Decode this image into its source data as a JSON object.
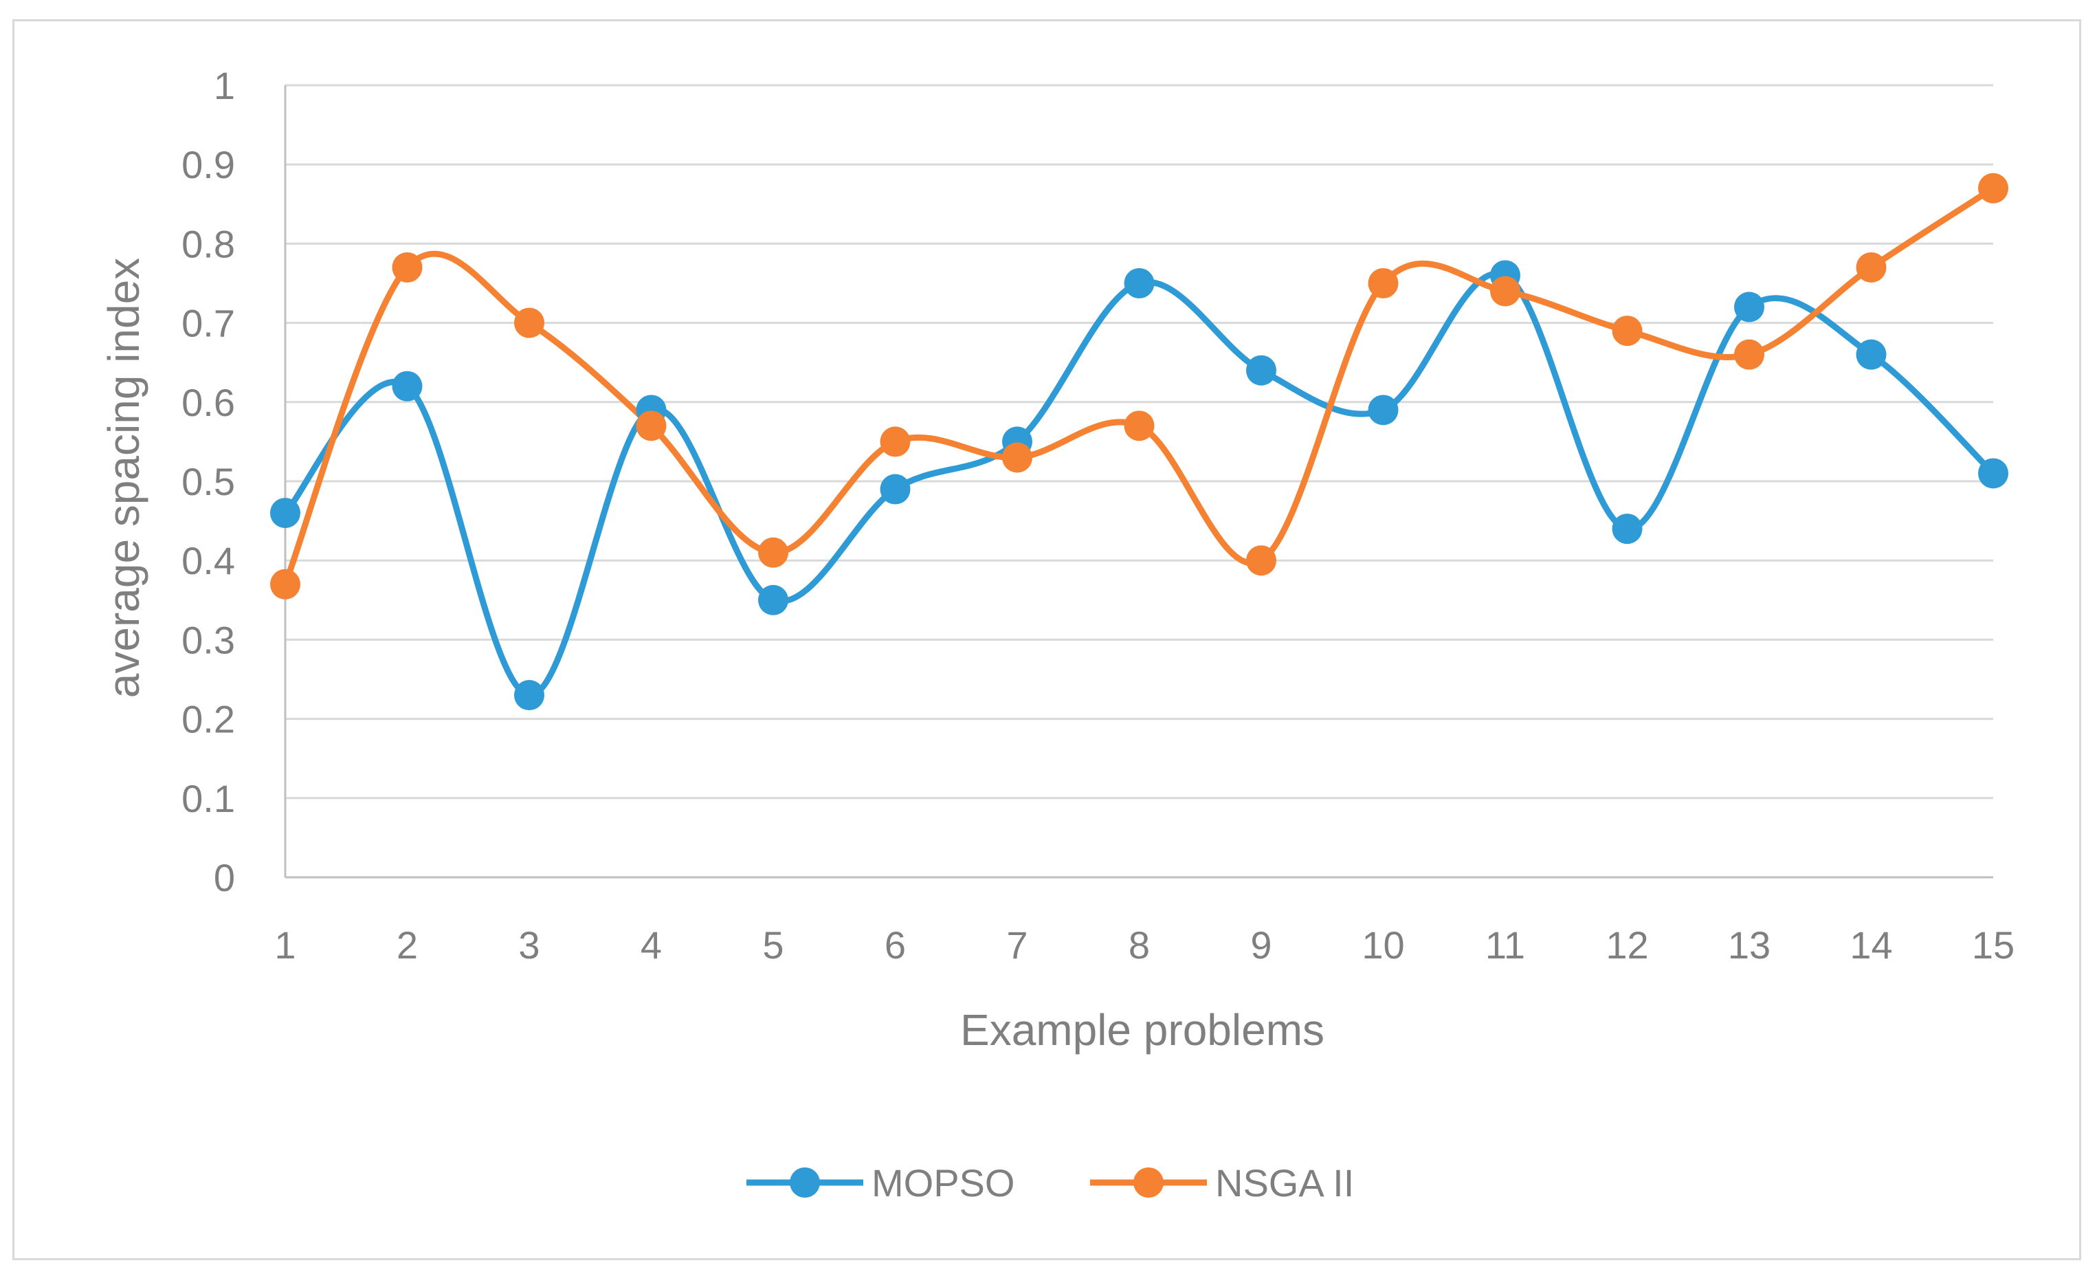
{
  "chart_data": {
    "type": "line",
    "title": "",
    "xlabel": "Example problems",
    "ylabel": "average spacing index",
    "categories": [
      "1",
      "2",
      "3",
      "4",
      "5",
      "6",
      "7",
      "8",
      "9",
      "10",
      "11",
      "12",
      "13",
      "14",
      "15"
    ],
    "y_ticks": [
      "0",
      "0.1",
      "0.2",
      "0.3",
      "0.4",
      "0.5",
      "0.6",
      "0.7",
      "0.8",
      "0.9",
      "1"
    ],
    "ylim": [
      0,
      1
    ],
    "grid": true,
    "smooth": true,
    "legend_position": "bottom",
    "series": [
      {
        "name": "MOPSO",
        "color": "#2e9bd6",
        "marker": "circle",
        "values": [
          0.46,
          0.62,
          0.23,
          0.59,
          0.35,
          0.49,
          0.55,
          0.75,
          0.64,
          0.59,
          0.76,
          0.44,
          0.72,
          0.66,
          0.51
        ]
      },
      {
        "name": "NSGA II",
        "color": "#f58232",
        "marker": "circle",
        "values": [
          0.37,
          0.77,
          0.7,
          0.57,
          0.41,
          0.55,
          0.53,
          0.57,
          0.4,
          0.75,
          0.74,
          0.69,
          0.66,
          0.77,
          0.87
        ]
      }
    ]
  }
}
